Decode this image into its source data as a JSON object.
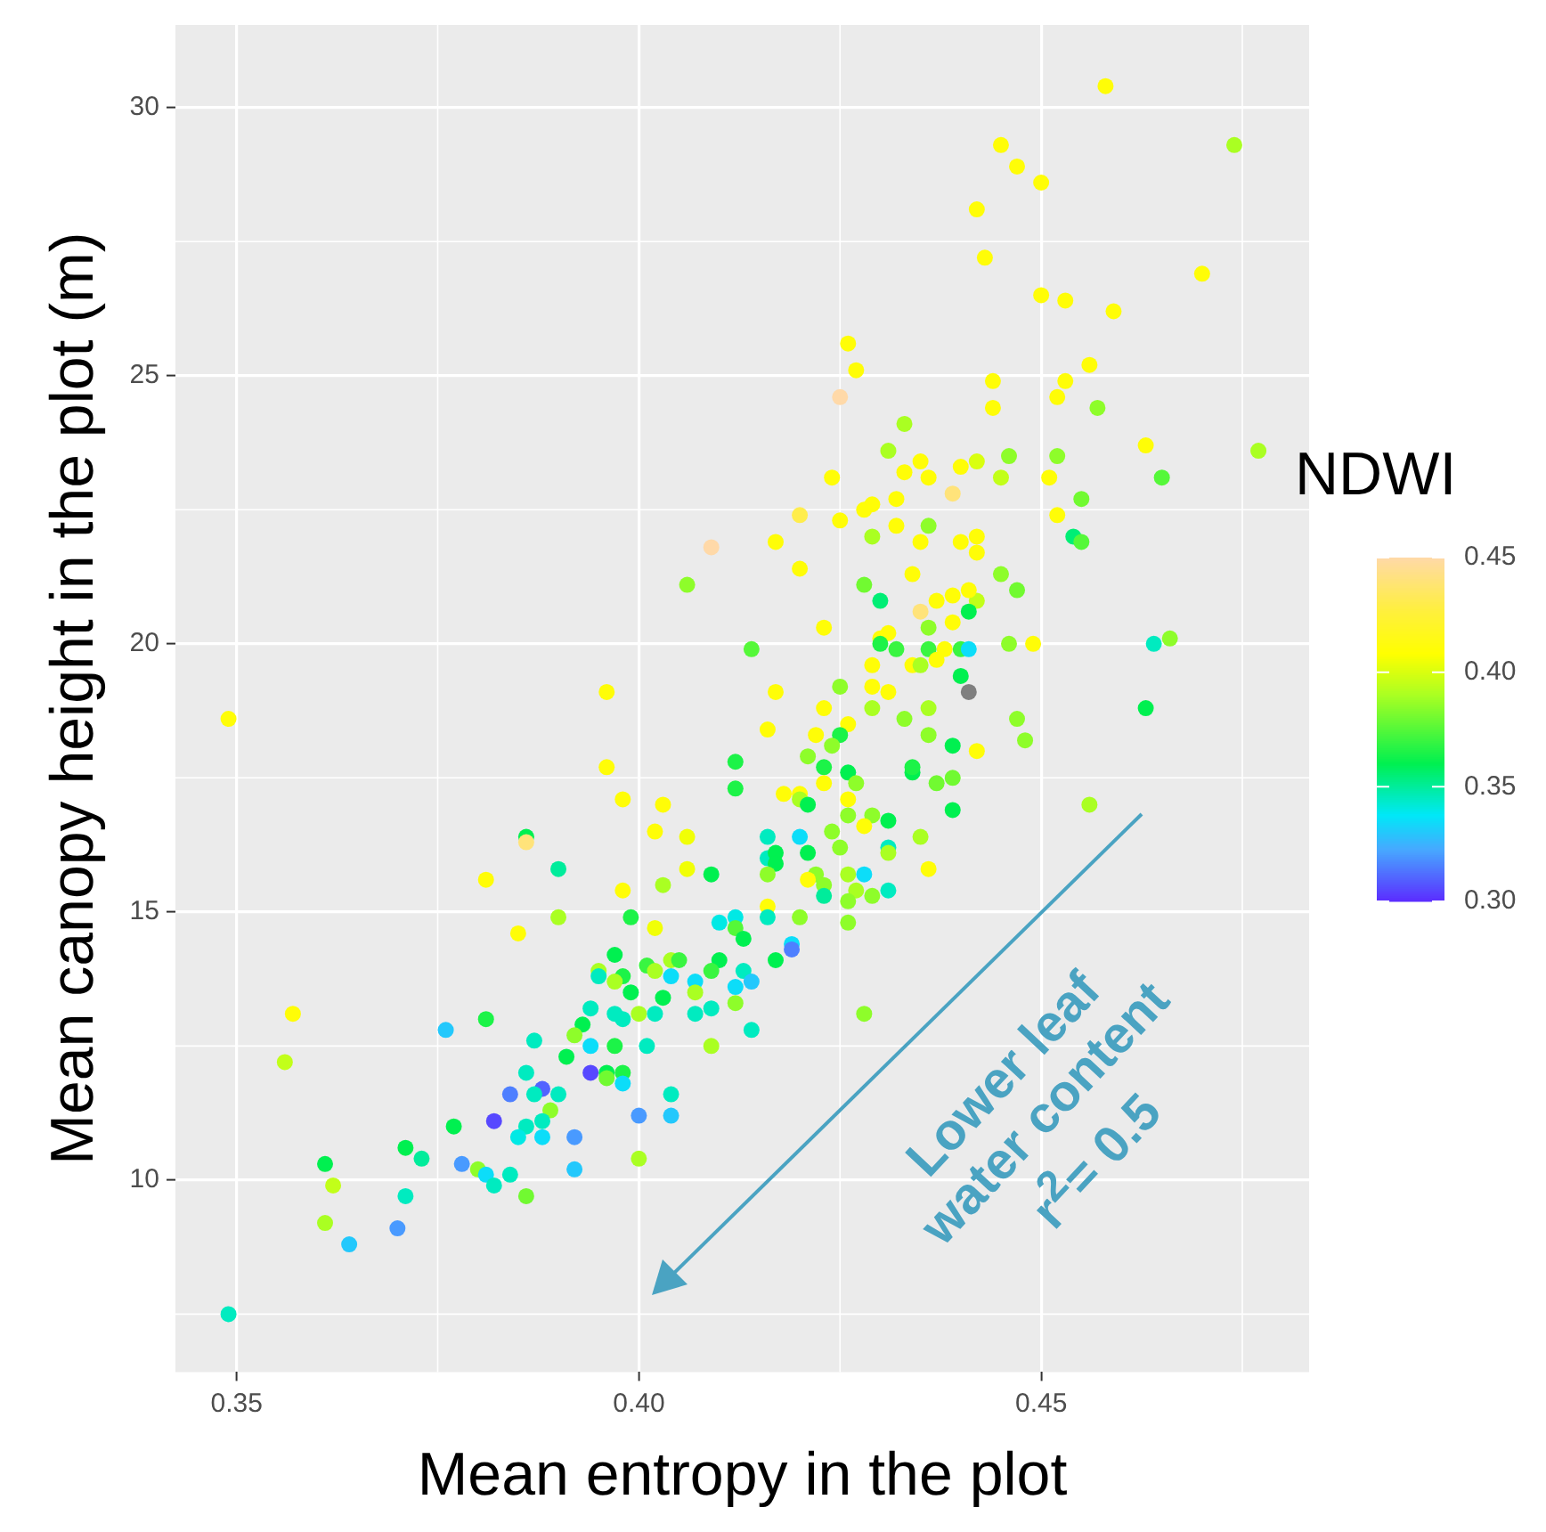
{
  "chart_data": {
    "type": "scatter",
    "xlabel": "Mean entropy in the plot",
    "ylabel": "Mean canopy height in the plot (m)",
    "clabel": "NDWI",
    "annotations": [
      "Lower leaf\nwater content\nr$^{2}$= 0.5"
    ],
    "xlim": [
      0.3424,
      0.4833
    ],
    "ylim": [
      6.42,
      31.54
    ],
    "xticks": [
      {
        "value": 0.35,
        "label": "0.35"
      },
      {
        "value": 0.4,
        "label": "0.40"
      },
      {
        "value": 0.45,
        "label": "0.45"
      }
    ],
    "yticks": [
      10,
      15,
      20,
      25,
      30
    ],
    "clim": [
      0.3,
      0.45
    ],
    "cticks": [
      {
        "value": 0.3,
        "label": "0.30"
      },
      {
        "value": 0.35,
        "label": "0.35"
      },
      {
        "value": 0.4,
        "label": "0.40"
      },
      {
        "value": 0.45,
        "label": "0.45"
      }
    ],
    "grid": true,
    "legend": false,
    "marker": "circle",
    "x": [
      0.409,
      0.406,
      0.396,
      0.458,
      0.445,
      0.447,
      0.45,
      0.474,
      0.442,
      0.443,
      0.47,
      0.45,
      0.453,
      0.459,
      0.426,
      0.427,
      0.425,
      0.456,
      0.444,
      0.453,
      0.452,
      0.444,
      0.457,
      0.433,
      0.431,
      0.435,
      0.433,
      0.436,
      0.44,
      0.442,
      0.446,
      0.445,
      0.452,
      0.451,
      0.463,
      0.477,
      0.465,
      0.424,
      0.455,
      0.452,
      0.454,
      0.455,
      0.439,
      0.429,
      0.428,
      0.432,
      0.42,
      0.425,
      0.417,
      0.42,
      0.429,
      0.432,
      0.436,
      0.435,
      0.44,
      0.442,
      0.442,
      0.428,
      0.434,
      0.445,
      0.447,
      0.43,
      0.437,
      0.439,
      0.442,
      0.441,
      0.435,
      0.439,
      0.441,
      0.423,
      0.431,
      0.436,
      0.43,
      0.43,
      0.432,
      0.414,
      0.436,
      0.438,
      0.44,
      0.441,
      0.446,
      0.449,
      0.464,
      0.466,
      0.429,
      0.434,
      0.435,
      0.437,
      0.44,
      0.425,
      0.429,
      0.431,
      0.417,
      0.441,
      0.463,
      0.349,
      0.396,
      0.398,
      0.403,
      0.402,
      0.406,
      0.386,
      0.386,
      0.39,
      0.381,
      0.398,
      0.403,
      0.406,
      0.409,
      0.412,
      0.412,
      0.385,
      0.39,
      0.399,
      0.402,
      0.41,
      0.412,
      0.412,
      0.397,
      0.401,
      0.404,
      0.405,
      0.41,
      0.409,
      0.395,
      0.395,
      0.398,
      0.397,
      0.402,
      0.404,
      0.407,
      0.399,
      0.403,
      0.407,
      0.412,
      0.412,
      0.407,
      0.409,
      0.394,
      0.397,
      0.398,
      0.4,
      0.402,
      0.376,
      0.381,
      0.357,
      0.356,
      0.393,
      0.392,
      0.387,
      0.391,
      0.394,
      0.397,
      0.401,
      0.409,
      0.386,
      0.394,
      0.388,
      0.384,
      0.387,
      0.39,
      0.396,
      0.396,
      0.398,
      0.398,
      0.404,
      0.389,
      0.382,
      0.388,
      0.386,
      0.385,
      0.388,
      0.392,
      0.4,
      0.404,
      0.377,
      0.371,
      0.373,
      0.378,
      0.38,
      0.381,
      0.382,
      0.384,
      0.386,
      0.392,
      0.4,
      0.361,
      0.362,
      0.361,
      0.371,
      0.37,
      0.364,
      0.349,
      0.423,
      0.429,
      0.433,
      0.436,
      0.416,
      0.422,
      0.426,
      0.425,
      0.436,
      0.447,
      0.448,
      0.442,
      0.439,
      0.421,
      0.424,
      0.423,
      0.426,
      0.427,
      0.423,
      0.434,
      0.434,
      0.437,
      0.439,
      0.418,
      0.42,
      0.42,
      0.421,
      0.426,
      0.426,
      0.429,
      0.428,
      0.431,
      0.439,
      0.416,
      0.42,
      0.424,
      0.425,
      0.431,
      0.431,
      0.435,
      0.416,
      0.417,
      0.417,
      0.421,
      0.416,
      0.422,
      0.421,
      0.423,
      0.426,
      0.428,
      0.427,
      0.423,
      0.426,
      0.429,
      0.431,
      0.436,
      0.456,
      0.416,
      0.416,
      0.42,
      0.426,
      0.413,
      0.419,
      0.419,
      0.417,
      0.413,
      0.414,
      0.414,
      0.428
    ],
    "values": [
      21.8,
      21.1,
      19.1,
      30.4,
      29.3,
      28.9,
      28.6,
      29.3,
      28.1,
      27.2,
      26.9,
      26.5,
      26.4,
      26.2,
      25.6,
      25.1,
      24.6,
      25.2,
      24.9,
      24.9,
      24.6,
      24.4,
      24.4,
      24.1,
      23.6,
      23.4,
      23.2,
      23.1,
      23.3,
      23.4,
      23.5,
      23.1,
      23.5,
      23.1,
      23.7,
      23.6,
      23.1,
      23.1,
      22.7,
      22.4,
      22.0,
      21.9,
      22.8,
      22.6,
      22.5,
      22.7,
      22.4,
      22.3,
      21.9,
      21.4,
      22.0,
      22.2,
      22.2,
      21.9,
      21.9,
      22.0,
      21.7,
      21.1,
      21.3,
      21.3,
      21.0,
      20.8,
      20.8,
      20.9,
      20.8,
      21.0,
      20.6,
      20.4,
      20.6,
      20.3,
      20.2,
      20.3,
      20.1,
      20.0,
      19.9,
      19.9,
      19.9,
      19.9,
      19.9,
      19.9,
      20.0,
      20.0,
      20.0,
      20.1,
      19.6,
      19.6,
      19.6,
      19.7,
      19.4,
      19.2,
      19.2,
      19.1,
      19.1,
      19.1,
      18.8,
      18.6,
      17.7,
      17.1,
      17.0,
      16.5,
      16.4,
      16.4,
      16.3,
      15.8,
      15.6,
      15.4,
      15.5,
      15.8,
      15.7,
      17.8,
      17.3,
      14.6,
      14.9,
      14.9,
      14.7,
      14.8,
      14.9,
      14.7,
      14.2,
      14.0,
      14.1,
      14.1,
      14.1,
      13.9,
      13.9,
      13.8,
      13.8,
      13.7,
      13.9,
      13.8,
      13.7,
      13.5,
      13.4,
      13.5,
      13.6,
      13.3,
      13.1,
      13.2,
      13.2,
      13.1,
      13.0,
      13.1,
      13.1,
      12.8,
      13.0,
      13.1,
      12.2,
      12.9,
      12.7,
      12.6,
      12.3,
      12.5,
      12.5,
      12.5,
      12.5,
      12.0,
      12.0,
      11.7,
      11.6,
      11.6,
      11.6,
      12.0,
      11.9,
      12.0,
      11.8,
      11.6,
      11.3,
      11.1,
      11.1,
      11.0,
      10.8,
      10.8,
      10.8,
      11.2,
      11.2,
      11.0,
      10.6,
      10.4,
      10.3,
      10.2,
      10.1,
      9.9,
      10.1,
      9.7,
      10.2,
      10.4,
      10.3,
      9.9,
      9.2,
      9.7,
      9.1,
      8.8,
      7.5,
      18.8,
      18.8,
      18.6,
      18.8,
      18.4,
      18.3,
      18.5,
      18.3,
      18.3,
      18.6,
      18.2,
      18.0,
      18.1,
      17.9,
      18.1,
      17.7,
      17.6,
      17.4,
      17.4,
      17.6,
      17.7,
      17.4,
      17.5,
      17.2,
      17.2,
      17.1,
      17.0,
      17.1,
      16.8,
      16.8,
      16.6,
      16.7,
      16.9,
      16.4,
      16.4,
      16.5,
      16.2,
      16.2,
      16.1,
      16.4,
      16.0,
      16.1,
      15.9,
      16.1,
      15.7,
      15.7,
      15.6,
      15.5,
      15.7,
      15.7,
      15.4,
      15.3,
      15.2,
      15.3,
      15.4,
      15.8,
      17.0,
      15.1,
      14.9,
      14.9,
      14.8,
      14.5,
      14.4,
      14.3,
      14.1,
      13.9,
      13.7,
      12.8,
      13.1
    ],
    "cvalues": [
      0.45,
      0.385,
      0.41,
      0.41,
      0.41,
      0.41,
      0.41,
      0.39,
      0.41,
      0.41,
      0.41,
      0.41,
      0.41,
      0.41,
      0.41,
      0.41,
      0.45,
      0.41,
      0.41,
      0.41,
      0.41,
      0.41,
      0.385,
      0.39,
      0.39,
      0.41,
      0.41,
      0.41,
      0.41,
      0.4,
      0.385,
      0.395,
      0.385,
      0.41,
      0.41,
      0.39,
      0.375,
      0.41,
      0.38,
      0.41,
      0.355,
      0.375,
      0.44,
      0.41,
      0.41,
      0.41,
      0.43,
      0.41,
      0.41,
      0.41,
      0.39,
      0.41,
      0.385,
      0.41,
      0.41,
      0.41,
      0.41,
      0.38,
      0.41,
      0.385,
      0.38,
      0.355,
      0.41,
      0.41,
      0.395,
      0.41,
      0.44,
      0.41,
      0.36,
      0.41,
      0.41,
      0.385,
      0.41,
      0.365,
      0.37,
      0.375,
      0.37,
      0.41,
      0.37,
      0.335,
      0.385,
      0.41,
      0.345,
      0.385,
      0.41,
      0.41,
      0.39,
      0.41,
      0.36,
      0.385,
      0.41,
      0.41,
      0.41,
      null,
      0.36,
      0.41,
      0.41,
      0.41,
      0.41,
      0.41,
      0.405,
      0.36,
      0.44,
      0.35,
      0.41,
      0.41,
      0.39,
      0.405,
      0.36,
      0.365,
      0.365,
      0.41,
      0.39,
      0.365,
      0.405,
      0.34,
      0.34,
      0.375,
      0.36,
      0.37,
      0.39,
      0.37,
      0.36,
      0.37,
      0.39,
      0.345,
      0.365,
      0.39,
      0.39,
      0.335,
      0.335,
      0.36,
      0.36,
      0.39,
      0.335,
      0.385,
      0.345,
      0.345,
      0.345,
      0.345,
      0.345,
      0.39,
      0.345,
      0.33,
      0.365,
      0.41,
      0.395,
      0.36,
      0.385,
      0.345,
      0.36,
      0.335,
      0.365,
      0.345,
      0.39,
      0.345,
      0.305,
      0.31,
      0.315,
      0.345,
      0.345,
      0.36,
      0.38,
      0.365,
      0.335,
      0.345,
      0.385,
      0.305,
      0.345,
      0.345,
      0.34,
      0.335,
      0.32,
      0.32,
      0.33,
      0.36,
      0.36,
      0.35,
      0.32,
      0.385,
      0.335,
      0.345,
      0.345,
      0.38,
      0.33,
      0.39,
      0.36,
      0.395,
      0.39,
      0.345,
      0.32,
      0.33,
      0.345,
      0.41,
      0.39,
      0.385,
      0.39,
      0.41,
      0.41,
      0.41,
      0.365,
      0.385,
      0.385,
      0.385,
      0.41,
      0.36,
      0.385,
      0.385,
      0.365,
      0.36,
      0.385,
      0.41,
      0.36,
      0.365,
      0.38,
      0.38,
      0.41,
      0.41,
      0.39,
      0.36,
      0.41,
      0.385,
      0.385,
      0.41,
      0.36,
      0.36,
      0.345,
      0.335,
      0.385,
      0.385,
      0.345,
      0.39,
      0.39,
      0.345,
      0.36,
      0.36,
      0.36,
      0.385,
      0.385,
      0.41,
      0.385,
      0.39,
      0.335,
      0.39,
      0.35,
      0.385,
      0.385,
      0.345,
      0.41,
      0.39,
      0.41,
      0.345,
      0.385,
      0.385,
      0.36,
      0.335,
      0.315,
      0.36,
      0.345,
      0.33,
      0.345,
      0.385
    ]
  }
}
